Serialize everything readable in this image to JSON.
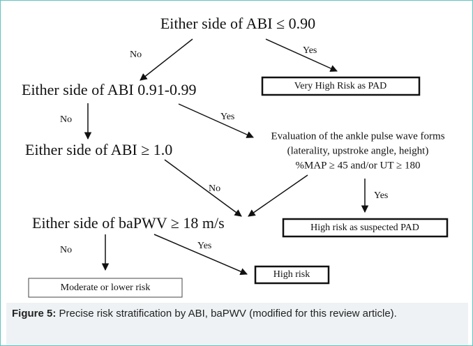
{
  "nodes": [
    {
      "label": "Either side of ABI ≤ 0.90"
    },
    {
      "label": "Very High Risk as PAD"
    },
    {
      "label": "Either side of ABI 0.91-0.99"
    },
    {
      "label": "Either side of ABI ≥ 1.0"
    },
    {
      "lines": [
        "Evaluation of  the ankle pulse wave forms",
        "(laterality, upstroke angle, height)",
        "%MAP ≥ 45 and/or UT ≥ 180"
      ]
    },
    {
      "label": "Either side of baPWV ≥ 18 m/s"
    },
    {
      "label": "High risk as suspected PAD"
    },
    {
      "label": "High risk"
    },
    {
      "label": "Moderate or lower risk"
    }
  ],
  "edges": [
    {
      "label": "No"
    },
    {
      "label": "Yes"
    },
    {
      "label": "No"
    },
    {
      "label": "Yes"
    },
    {
      "label": "No"
    },
    {
      "label": "Yes"
    },
    {
      "label": "No"
    },
    {
      "label": "Yes"
    }
  ],
  "caption": {
    "label": "Figure 5:",
    "text": "Precise risk stratification by ABI, baPWV (modified for this review article)."
  }
}
